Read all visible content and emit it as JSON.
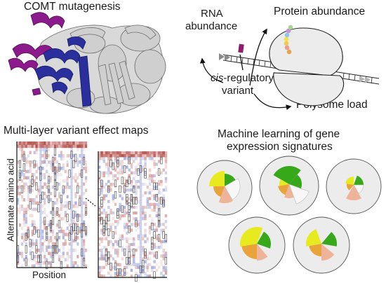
{
  "panels": {
    "mutagenesis": {
      "title": "COMT mutagenesis"
    },
    "regulation": {
      "rna_label_line1": "RNA",
      "rna_label_line2": "abundance",
      "protein_label": "Protein abundance",
      "cis_prefix": "cis",
      "cis_rest": "-regulatory",
      "variant_label": "variant",
      "polysome_label": "Polysome load"
    },
    "variant_maps": {
      "title": "Multi-layer variant effect maps",
      "y_axis_label": "Alternate amino acid",
      "x_axis_label": "Position"
    },
    "ml": {
      "title_line1": "Machine learning of gene",
      "title_line2": "expression signatures"
    }
  },
  "colors": {
    "protein_gray": "#c9c9c9",
    "helix_purple": "#8c1a8c",
    "helix_blue": "#2b2f9e",
    "ribosome_fill": "#ececec",
    "variant_mark": "#8e1d6e",
    "heat_red": "#a8322c",
    "heat_blue": "#3b4bb0",
    "wedge_lime": "#e6ea1e",
    "wedge_green": "#36a81a",
    "wedge_orange": "#e8a43a",
    "wedge_salmon": "#efb39a",
    "circle_fill": "#ececec"
  },
  "icons": [
    "ribosome-icon",
    "mrna-strand-icon",
    "nascent-peptide-icon",
    "arrow-icon",
    "protein-structure-icon"
  ]
}
